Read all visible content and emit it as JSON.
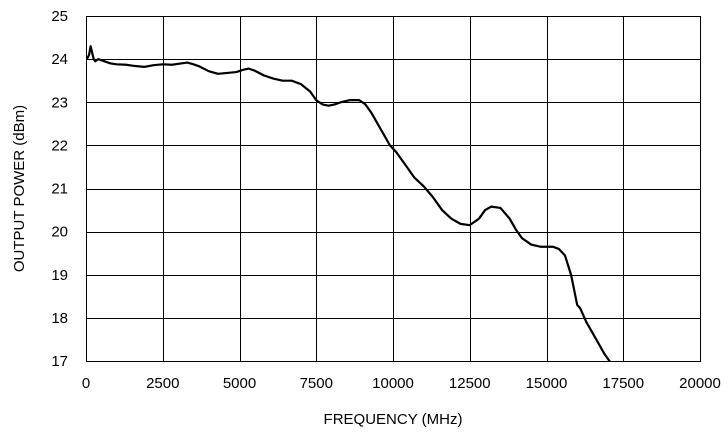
{
  "chart_data": {
    "type": "line",
    "title": "",
    "xlabel": "FREQUENCY (MHz)",
    "ylabel": "OUTPUT POWER (dBm)",
    "xlim": [
      0,
      20000
    ],
    "ylim": [
      17,
      25
    ],
    "xticks": [
      0,
      2500,
      5000,
      7500,
      10000,
      12500,
      15000,
      17500,
      20000
    ],
    "yticks": [
      17,
      18,
      19,
      20,
      21,
      22,
      23,
      24,
      25
    ],
    "grid": true,
    "legend": "none",
    "series": [
      {
        "color": "#000000",
        "x": [
          30,
          100,
          150,
          200,
          250,
          300,
          400,
          600,
          800,
          1000,
          1300,
          1600,
          1900,
          2200,
          2500,
          2800,
          3100,
          3300,
          3500,
          3700,
          4000,
          4300,
          4600,
          4900,
          5100,
          5300,
          5500,
          5800,
          6100,
          6400,
          6700,
          7000,
          7300,
          7500,
          7700,
          7900,
          8100,
          8300,
          8600,
          8900,
          9100,
          9300,
          9500,
          9700,
          9900,
          10100,
          10400,
          10700,
          11000,
          11300,
          11600,
          11900,
          12200,
          12500,
          12800,
          13000,
          13200,
          13500,
          13800,
          14000,
          14200,
          14500,
          14800,
          15000,
          15200,
          15400,
          15600,
          15800,
          16000,
          16100,
          16300,
          16500,
          16700,
          16900,
          17100,
          17300,
          17450
        ],
        "values": [
          24.0,
          24.1,
          24.3,
          24.15,
          24.0,
          23.95,
          24.0,
          23.95,
          23.9,
          23.88,
          23.87,
          23.84,
          23.82,
          23.86,
          23.88,
          23.87,
          23.9,
          23.92,
          23.88,
          23.83,
          23.72,
          23.66,
          23.68,
          23.7,
          23.75,
          23.78,
          23.73,
          23.62,
          23.55,
          23.5,
          23.5,
          23.42,
          23.25,
          23.05,
          22.95,
          22.92,
          22.95,
          23.0,
          23.05,
          23.05,
          22.95,
          22.75,
          22.5,
          22.25,
          22.0,
          21.85,
          21.55,
          21.25,
          21.05,
          20.8,
          20.5,
          20.3,
          20.18,
          20.15,
          20.3,
          20.5,
          20.58,
          20.55,
          20.3,
          20.05,
          19.85,
          19.7,
          19.65,
          19.65,
          19.65,
          19.6,
          19.45,
          19.0,
          18.3,
          18.22,
          17.9,
          17.65,
          17.4,
          17.15,
          16.95,
          16.85,
          16.82
        ]
      }
    ]
  }
}
